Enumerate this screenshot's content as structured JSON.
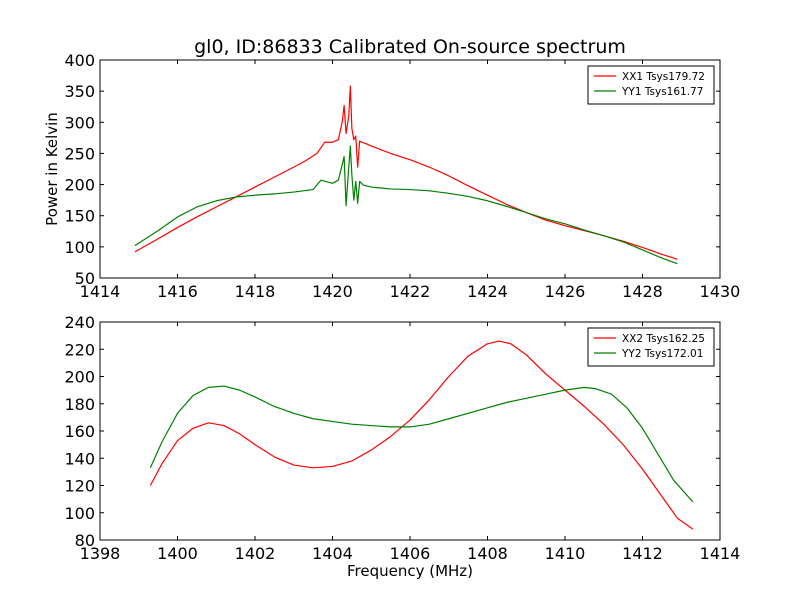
{
  "figure": {
    "title": "gl0, ID:86833 Calibrated On-source spectrum"
  },
  "chart_data": [
    {
      "type": "line",
      "ylabel": "Power in Kelvin",
      "xlabel": "",
      "xlim": [
        1414,
        1430
      ],
      "ylim": [
        50,
        400
      ],
      "xticks": [
        1414,
        1416,
        1418,
        1420,
        1422,
        1424,
        1426,
        1428,
        1430
      ],
      "yticks": [
        50,
        100,
        150,
        200,
        250,
        300,
        350,
        400
      ],
      "grid": false,
      "legend": "top-right",
      "series": [
        {
          "name": "XX1 Tsys179.72",
          "color": "#ff0000",
          "x": [
            1414.9,
            1415.5,
            1416,
            1416.5,
            1417,
            1417.5,
            1418,
            1418.5,
            1419,
            1419.3,
            1419.6,
            1419.8,
            1420,
            1420.15,
            1420.25,
            1420.3,
            1420.35,
            1420.42,
            1420.46,
            1420.5,
            1420.55,
            1420.6,
            1420.65,
            1420.7,
            1420.75,
            1420.85,
            1421,
            1421.5,
            1422,
            1422.5,
            1423,
            1423.5,
            1424,
            1424.5,
            1425,
            1425.5,
            1426,
            1426.5,
            1427,
            1427.5,
            1428,
            1428.5,
            1428.9
          ],
          "y": [
            92,
            113,
            131,
            148,
            164,
            180,
            196,
            212,
            228,
            238,
            250,
            268,
            268,
            272,
            300,
            327,
            282,
            310,
            358,
            290,
            272,
            278,
            228,
            270,
            268,
            266,
            262,
            250,
            240,
            228,
            214,
            198,
            183,
            168,
            155,
            143,
            134,
            126,
            118,
            109,
            99,
            88,
            80
          ]
        },
        {
          "name": "YY1 Tsys161.77",
          "color": "#007f00",
          "x": [
            1414.9,
            1415.5,
            1416,
            1416.5,
            1417,
            1417.5,
            1418,
            1418.5,
            1419,
            1419.5,
            1419.7,
            1420,
            1420.15,
            1420.25,
            1420.3,
            1420.35,
            1420.42,
            1420.46,
            1420.5,
            1420.55,
            1420.6,
            1420.65,
            1420.7,
            1420.8,
            1421,
            1421.5,
            1422,
            1422.5,
            1423,
            1423.5,
            1424,
            1424.5,
            1425,
            1425.5,
            1426,
            1426.5,
            1427,
            1427.5,
            1428,
            1428.5,
            1428.9
          ],
          "y": [
            102,
            126,
            148,
            164,
            174,
            180,
            183,
            185,
            188,
            192,
            207,
            202,
            207,
            232,
            245,
            166,
            228,
            262,
            215,
            175,
            205,
            170,
            205,
            199,
            196,
            193,
            192,
            190,
            186,
            181,
            174,
            165,
            155,
            145,
            137,
            127,
            118,
            108,
            95,
            82,
            73
          ]
        }
      ]
    },
    {
      "type": "line",
      "ylabel": "",
      "xlabel": "Frequency (MHz)",
      "xlim": [
        1398,
        1414
      ],
      "ylim": [
        80,
        240
      ],
      "xticks": [
        1398,
        1400,
        1402,
        1404,
        1406,
        1408,
        1410,
        1412,
        1414
      ],
      "yticks": [
        80,
        100,
        120,
        140,
        160,
        180,
        200,
        220,
        240
      ],
      "grid": false,
      "legend": "top-right",
      "series": [
        {
          "name": "XX2 Tsys162.25",
          "color": "#ff0000",
          "x": [
            1399.3,
            1399.6,
            1400,
            1400.4,
            1400.8,
            1401.2,
            1401.6,
            1402,
            1402.5,
            1403,
            1403.5,
            1404,
            1404.5,
            1405,
            1405.5,
            1406,
            1406.5,
            1407,
            1407.5,
            1408,
            1408.3,
            1408.6,
            1409,
            1409.5,
            1410,
            1410.5,
            1411,
            1411.5,
            1412,
            1412.5,
            1412.9,
            1413.3
          ],
          "y": [
            120,
            136,
            153,
            162,
            166,
            164,
            158,
            150,
            141,
            135,
            133,
            134,
            138,
            146,
            156,
            168,
            183,
            200,
            215,
            224,
            226,
            224,
            216,
            202,
            190,
            178,
            165,
            150,
            132,
            112,
            96,
            88
          ]
        },
        {
          "name": "YY2 Tsys172.01",
          "color": "#007f00",
          "x": [
            1399.3,
            1399.6,
            1400,
            1400.4,
            1400.8,
            1401.2,
            1401.6,
            1402,
            1402.5,
            1403,
            1403.5,
            1404,
            1404.5,
            1405,
            1405.5,
            1406,
            1406.5,
            1407,
            1407.5,
            1408,
            1408.5,
            1409,
            1409.5,
            1410,
            1410.5,
            1410.8,
            1411.2,
            1411.6,
            1412,
            1412.4,
            1412.8,
            1413.3
          ],
          "y": [
            133,
            152,
            173,
            186,
            192,
            193,
            190,
            185,
            178,
            173,
            169,
            167,
            165,
            164,
            163,
            163,
            165,
            169,
            173,
            177,
            181,
            184,
            187,
            190,
            192,
            191,
            187,
            177,
            162,
            143,
            124,
            108
          ]
        }
      ]
    }
  ]
}
